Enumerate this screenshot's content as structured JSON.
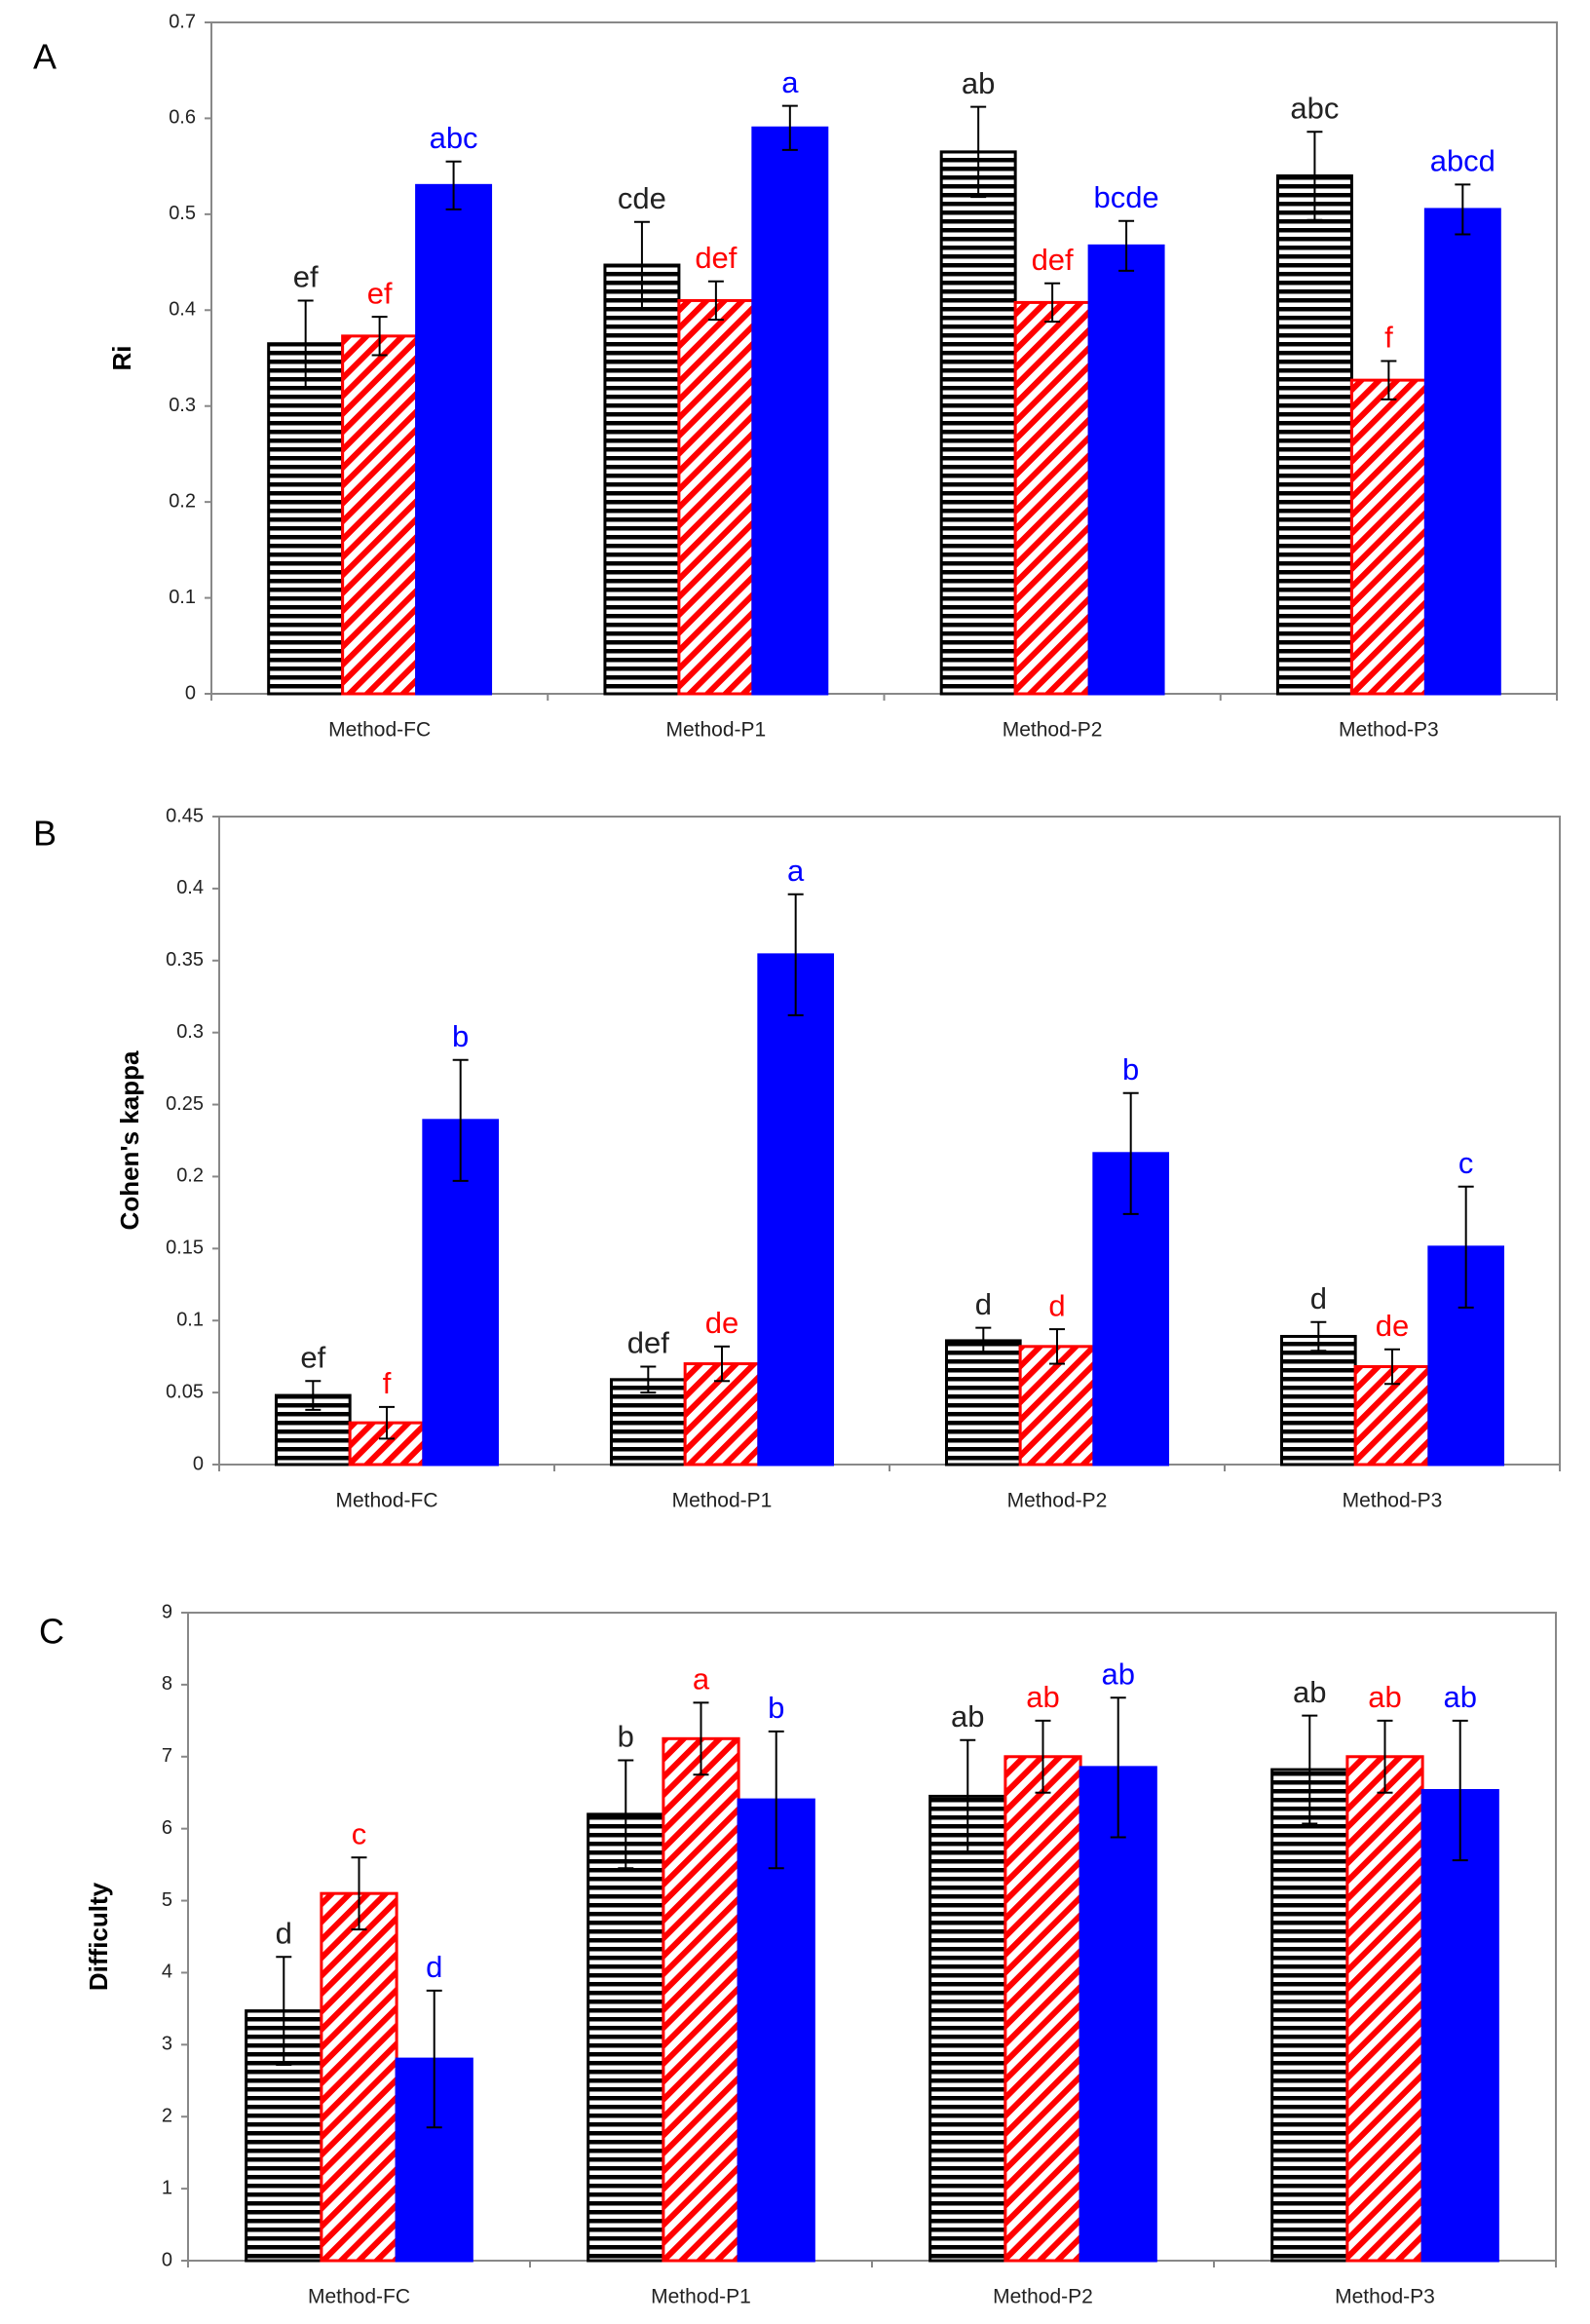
{
  "chart_data": [
    {
      "type": "bar",
      "panel": "A",
      "y_label": "Ri",
      "categories": [
        "Method-FC",
        "Method-P1",
        "Method-P2",
        "Method-P3"
      ],
      "ylim": [
        0,
        0.7
      ],
      "yticks": [
        0,
        0.1,
        0.2,
        0.3,
        0.4,
        0.5,
        0.6,
        0.7
      ],
      "series": [
        {
          "color": "#000000",
          "pattern": "horizontal-stripes",
          "values": [
            0.365,
            0.447,
            0.565,
            0.54
          ],
          "errors": [
            0.045,
            0.045,
            0.047,
            0.046
          ],
          "labels": [
            "ef",
            "cde",
            "ab",
            "abc"
          ]
        },
        {
          "color": "#ff0000",
          "pattern": "diagonal-hatch",
          "values": [
            0.373,
            0.41,
            0.408,
            0.327
          ],
          "errors": [
            0.02,
            0.02,
            0.02,
            0.02
          ],
          "labels": [
            "ef",
            "def",
            "def",
            "f"
          ]
        },
        {
          "color": "#0000ff",
          "pattern": "solid",
          "values": [
            0.53,
            0.59,
            0.467,
            0.505
          ],
          "errors": [
            0.025,
            0.023,
            0.026,
            0.026
          ],
          "labels": [
            "abc",
            "a",
            "bcde",
            "abcd"
          ]
        }
      ]
    },
    {
      "type": "bar",
      "panel": "B",
      "y_label": "Cohen's kappa",
      "categories": [
        "Method-FC",
        "Method-P1",
        "Method-P2",
        "Method-P3"
      ],
      "ylim": [
        0,
        0.45
      ],
      "yticks": [
        0,
        0.05,
        0.1,
        0.15,
        0.2,
        0.25,
        0.3,
        0.35,
        0.4,
        0.45
      ],
      "series": [
        {
          "color": "#000000",
          "pattern": "horizontal-stripes",
          "values": [
            0.048,
            0.059,
            0.086,
            0.089
          ],
          "errors": [
            0.01,
            0.009,
            0.009,
            0.01
          ],
          "labels": [
            "ef",
            "def",
            "d",
            "d"
          ]
        },
        {
          "color": "#ff0000",
          "pattern": "diagonal-hatch",
          "values": [
            0.029,
            0.07,
            0.082,
            0.068
          ],
          "errors": [
            0.011,
            0.012,
            0.012,
            0.012
          ],
          "labels": [
            "f",
            "de",
            "d",
            "de"
          ]
        },
        {
          "color": "#0000ff",
          "pattern": "solid",
          "values": [
            0.239,
            0.354,
            0.216,
            0.151
          ],
          "errors": [
            0.042,
            0.042,
            0.042,
            0.042
          ],
          "labels": [
            "b",
            "a",
            "b",
            "c"
          ]
        }
      ]
    },
    {
      "type": "bar",
      "panel": "C",
      "y_label": "Difficulty",
      "categories": [
        "Method-FC",
        "Method-P1",
        "Method-P2",
        "Method-P3"
      ],
      "ylim": [
        0,
        9
      ],
      "yticks": [
        0,
        1,
        2,
        3,
        4,
        5,
        6,
        7,
        8,
        9
      ],
      "series": [
        {
          "color": "#000000",
          "pattern": "horizontal-stripes",
          "values": [
            3.47,
            6.2,
            6.45,
            6.82
          ],
          "errors": [
            0.75,
            0.75,
            0.78,
            0.75
          ],
          "labels": [
            "d",
            "b",
            "ab",
            "ab"
          ]
        },
        {
          "color": "#ff0000",
          "pattern": "diagonal-hatch",
          "values": [
            5.1,
            7.25,
            7.0,
            7.0
          ],
          "errors": [
            0.5,
            0.5,
            0.5,
            0.5
          ],
          "labels": [
            "c",
            "a",
            "ab",
            "ab"
          ]
        },
        {
          "color": "#0000ff",
          "pattern": "solid",
          "values": [
            2.8,
            6.4,
            6.85,
            6.53
          ],
          "errors": [
            0.95,
            0.95,
            0.97,
            0.97
          ],
          "labels": [
            "d",
            "b",
            "ab",
            "ab"
          ]
        }
      ]
    }
  ]
}
